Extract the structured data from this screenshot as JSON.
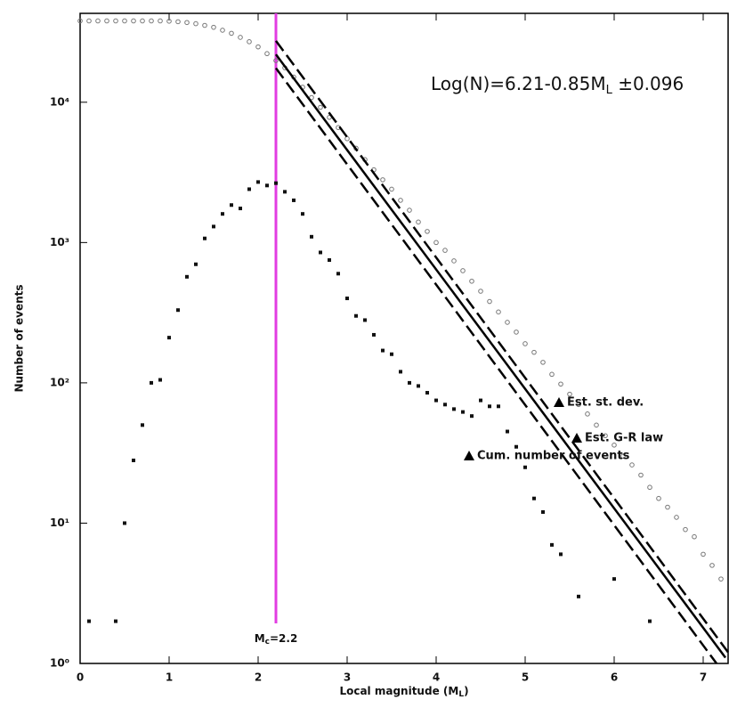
{
  "chart_data": {
    "type": "scatter",
    "ylog": true,
    "xlim": [
      0,
      7.28
    ],
    "ylim": [
      1,
      43000
    ],
    "xticks": [
      0,
      1,
      2,
      3,
      4,
      5,
      6,
      7
    ],
    "yticks": [
      {
        "value": 1,
        "label": "10⁰"
      },
      {
        "value": 10,
        "label": "10¹"
      },
      {
        "value": 100,
        "label": "10²"
      },
      {
        "value": 1000,
        "label": "10³"
      },
      {
        "value": 10000,
        "label": "10⁴"
      }
    ],
    "xlabel": [
      "Local magnitude (M",
      "L",
      ")"
    ],
    "ylabel": "Number of events",
    "equation": [
      "Log(N)=6.21-0.85M",
      "L",
      " ±0.096"
    ],
    "mc": {
      "x": 2.2,
      "color": "#e23ce2",
      "label": [
        "M",
        "c",
        "=2.2"
      ]
    },
    "series": [
      {
        "name": "Cum. number of events",
        "type": "scatter",
        "marker": "open-circle",
        "color": "#777777",
        "x": [
          0,
          0.1,
          0.2,
          0.3,
          0.4,
          0.5,
          0.6,
          0.7,
          0.8,
          0.9,
          1,
          1.1,
          1.2,
          1.3,
          1.4,
          1.5,
          1.6,
          1.7,
          1.8,
          1.9,
          2,
          2.1,
          2.2,
          2.3,
          2.4,
          2.5,
          2.6,
          2.7,
          2.8,
          2.9,
          3,
          3.1,
          3.2,
          3.3,
          3.4,
          3.5,
          3.6,
          3.7,
          3.8,
          3.9,
          4,
          4.1,
          4.2,
          4.3,
          4.4,
          4.5,
          4.6,
          4.7,
          4.8,
          4.9,
          5,
          5.1,
          5.2,
          5.3,
          5.4,
          5.5,
          5.6,
          5.7,
          5.8,
          5.9,
          6,
          6.1,
          6.2,
          6.3,
          6.4,
          6.5,
          6.6,
          6.7,
          6.8,
          6.9,
          7,
          7.1,
          7.2
        ],
        "values": [
          38000,
          38000,
          38000,
          38000,
          38000,
          38000,
          38000,
          38000,
          38000,
          38000,
          37800,
          37500,
          37000,
          36300,
          35300,
          34200,
          32600,
          31000,
          29000,
          27000,
          24800,
          22200,
          19800,
          17600,
          15100,
          12800,
          10800,
          9200,
          7800,
          6600,
          5500,
          4700,
          3900,
          3300,
          2800,
          2400,
          2000,
          1700,
          1400,
          1200,
          1000,
          880,
          740,
          630,
          530,
          450,
          380,
          320,
          270,
          230,
          190,
          165,
          140,
          115,
          98,
          83,
          70,
          60,
          50,
          42,
          36,
          30,
          26,
          22,
          18,
          15,
          13,
          11,
          9,
          8,
          6,
          5,
          4
        ]
      },
      {
        "name": "Est. st. dev.",
        "type": "band-lines",
        "color": "#000000",
        "lines": [
          {
            "x": [
              2.2,
              7.28
            ],
            "values": [
              27400,
              1.2
            ]
          },
          {
            "x": [
              2.2,
              7.15
            ],
            "values": [
              17500,
              1
            ]
          }
        ]
      },
      {
        "name": "Est. G-R law",
        "type": "line",
        "color": "#000000",
        "x": [
          2.2,
          7.25
        ],
        "values": [
          21900,
          1.1
        ]
      },
      {
        "type": "scatter",
        "marker": "square",
        "color": "#111111",
        "x": [
          0.1,
          0.4,
          0.5,
          0.6,
          0.7,
          0.8,
          0.9,
          1,
          1.1,
          1.2,
          1.3,
          1.4,
          1.5,
          1.6,
          1.7,
          1.8,
          1.9,
          2,
          2.1,
          2.2,
          2.3,
          2.4,
          2.5,
          2.6,
          2.7,
          2.8,
          2.9,
          3,
          3.1,
          3.2,
          3.3,
          3.4,
          3.5,
          3.6,
          3.7,
          3.8,
          3.9,
          4,
          4.1,
          4.2,
          4.3,
          4.4,
          4.5,
          4.6,
          4.7,
          4.8,
          4.9,
          5,
          5.1,
          5.2,
          5.3,
          5.4,
          5.6,
          6,
          6.4
        ],
        "values": [
          2,
          2,
          10,
          28,
          50,
          100,
          105,
          210,
          330,
          570,
          700,
          1070,
          1300,
          1600,
          1850,
          1750,
          2400,
          2700,
          2550,
          2650,
          2300,
          2000,
          1600,
          1100,
          850,
          750,
          600,
          400,
          300,
          280,
          220,
          170,
          160,
          120,
          100,
          95,
          85,
          75,
          70,
          65,
          62,
          58,
          75,
          68,
          68,
          45,
          35,
          25,
          15,
          12,
          7,
          6,
          3,
          4,
          2
        ]
      }
    ]
  }
}
